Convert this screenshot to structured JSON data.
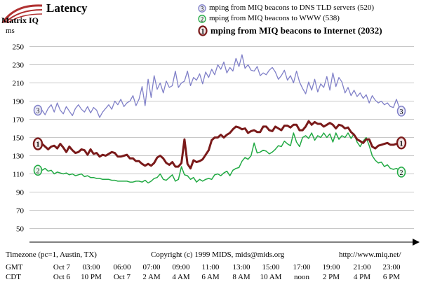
{
  "brand": {
    "name": "Matrix IQ"
  },
  "chart_data": {
    "type": "line",
    "title": "Latency",
    "ylabel": "ms",
    "ylim": [
      35,
      255
    ],
    "yticks": [
      250,
      230,
      210,
      190,
      170,
      150,
      130,
      110,
      90,
      70,
      50
    ],
    "x": [
      0,
      1,
      2,
      3,
      4,
      5,
      6,
      7,
      8,
      9,
      10,
      11,
      12,
      13,
      14,
      15,
      16,
      17,
      18,
      19,
      20,
      21,
      22,
      23,
      24,
      25,
      26,
      27,
      28,
      29,
      30,
      31,
      32,
      33,
      34,
      35,
      36,
      37,
      38,
      39,
      40,
      41,
      42,
      43,
      44,
      45,
      46,
      47,
      48,
      49,
      50,
      51,
      52,
      53,
      54,
      55,
      56,
      57,
      58,
      59,
      60,
      61,
      62,
      63,
      64,
      65,
      66,
      67,
      68,
      69,
      70,
      71,
      72,
      73,
      74,
      75,
      76,
      77,
      78,
      79,
      80,
      81,
      82,
      83,
      84,
      85,
      86,
      87,
      88,
      89,
      90,
      91,
      92,
      93,
      94,
      95,
      96,
      97,
      98,
      99,
      100,
      101,
      102,
      103,
      104,
      105,
      106,
      107,
      108,
      109,
      110,
      111,
      112,
      113,
      114,
      115,
      116,
      117,
      118,
      119,
      120
    ],
    "xlim": [
      0,
      120
    ],
    "time_axes": [
      {
        "name": "GMT",
        "labels": [
          "Oct 7",
          "03:00",
          "06:00",
          "07:00",
          "09:00",
          "11:00",
          "13:00",
          "15:00",
          "17:00",
          "19:00",
          "21:00",
          "23:00"
        ]
      },
      {
        "name": "CDT",
        "labels": [
          "Oct 6",
          "10 PM",
          "Oct 7",
          "2 AM",
          "4 AM",
          "6 AM",
          "8 AM",
          "10 AM",
          "noon",
          "2 PM",
          "4 PM",
          "6 PM"
        ]
      }
    ],
    "series": [
      {
        "name": "mping from MIQ beacons to DNS TLD servers (520)",
        "marker": "3",
        "color": "#8080c8",
        "values": [
          180,
          175,
          182,
          186,
          178,
          188,
          180,
          176,
          184,
          179,
          174,
          182,
          186,
          181,
          178,
          184,
          177,
          183,
          180,
          172,
          178,
          182,
          186,
          181,
          190,
          186,
          192,
          184,
          188,
          190,
          196,
          185,
          192,
          206,
          185,
          214,
          194,
          218,
          203,
          210,
          199,
          212,
          205,
          207,
          223,
          205,
          210,
          212,
          223,
          207,
          216,
          213,
          220,
          209,
          222,
          216,
          225,
          219,
          230,
          225,
          233,
          221,
          227,
          223,
          237,
          228,
          241,
          226,
          230,
          224,
          223,
          228,
          218,
          221,
          219,
          224,
          227,
          222,
          214,
          218,
          224,
          213,
          218,
          210,
          223,
          211,
          204,
          198,
          211,
          202,
          214,
          200,
          209,
          205,
          217,
          202,
          221,
          206,
          216,
          211,
          199,
          205,
          196,
          202,
          195,
          199,
          193,
          197,
          188,
          196,
          191,
          188,
          190,
          186,
          188,
          184,
          183,
          192,
          182,
          181,
          179
        ]
      },
      {
        "name": "mping from MIQ beacons to WWW (538)",
        "marker": "2",
        "color": "#22aa44",
        "values": [
          114,
          116,
          113,
          114,
          110,
          112,
          111,
          110,
          111,
          109,
          110,
          108,
          109,
          110,
          107,
          108,
          106,
          106,
          105,
          105,
          104,
          104,
          104,
          103,
          103,
          102,
          102,
          102,
          102,
          101,
          101,
          102,
          102,
          101,
          103,
          100,
          102,
          105,
          106,
          110,
          104,
          103,
          106,
          109,
          102,
          104,
          118,
          109,
          108,
          104,
          106,
          101,
          104,
          102,
          104,
          105,
          104,
          109,
          110,
          108,
          111,
          113,
          108,
          114,
          116,
          117,
          124,
          128,
          126,
          130,
          144,
          133,
          134,
          136,
          135,
          132,
          134,
          137,
          141,
          140,
          146,
          143,
          141,
          155,
          145,
          140,
          150,
          152,
          149,
          155,
          147,
          152,
          150,
          155,
          150,
          154,
          145,
          155,
          148,
          152,
          150,
          155,
          149,
          154,
          145,
          140,
          146,
          150,
          141,
          130,
          125,
          122,
          123,
          118,
          120,
          116,
          115,
          116,
          114,
          113,
          112
        ]
      },
      {
        "name": "mping from MIQ beacons to Internet (2032)",
        "marker": "1",
        "color": "#7a1a1a",
        "values": [
          143,
          140,
          137,
          140,
          141,
          138,
          143,
          139,
          134,
          140,
          136,
          133,
          134,
          137,
          136,
          131,
          137,
          132,
          133,
          129,
          131,
          130,
          132,
          134,
          133,
          129,
          129,
          130,
          131,
          127,
          127,
          124,
          124,
          121,
          119,
          121,
          119,
          122,
          128,
          130,
          127,
          122,
          120,
          123,
          118,
          118,
          122,
          148,
          121,
          116,
          125,
          123,
          124,
          126,
          131,
          136,
          147,
          150,
          150,
          153,
          150,
          153,
          155,
          159,
          162,
          161,
          159,
          160,
          155,
          157,
          158,
          156,
          156,
          162,
          162,
          158,
          157,
          162,
          160,
          158,
          163,
          163,
          161,
          164,
          164,
          158,
          158,
          162,
          168,
          164,
          167,
          165,
          165,
          162,
          164,
          166,
          164,
          160,
          164,
          163,
          160,
          161,
          156,
          153,
          148,
          146,
          144,
          148,
          148,
          140,
          138,
          141,
          142,
          143,
          144,
          142,
          142,
          143,
          144,
          143,
          144
        ]
      }
    ]
  },
  "footer": {
    "timezone": "Timezone (pc=1, Austin, TX)",
    "copyright": "Copyright (c) 1999 MIDS, mids@mids.org",
    "url": "http://www.miq.net/"
  }
}
